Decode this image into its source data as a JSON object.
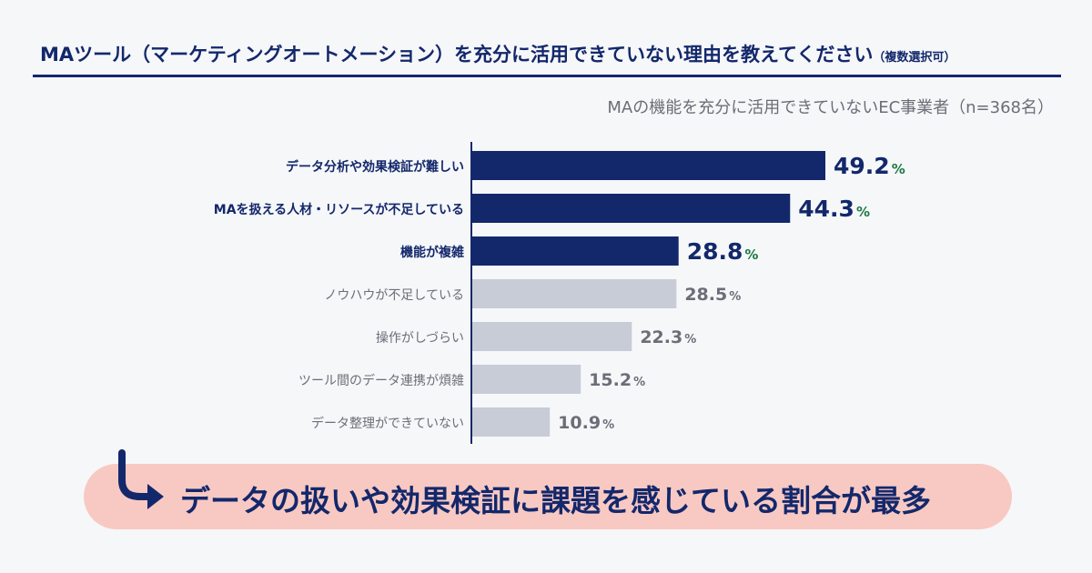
{
  "header": {
    "title": "MAツール（マーケティングオートメーション）を充分に活用できていない理由を教えてください",
    "title_note": "（複数選択可）",
    "subtitle": "MAの機能を充分に活用できていないEC事業者（n=368名）"
  },
  "chart_data": {
    "type": "bar",
    "orientation": "horizontal",
    "categories": [
      "データ分析や効果検証が難しい",
      "MAを扱える人材・リソースが不足している",
      "機能が複雑",
      "ノウハウが不足している",
      "操作がしづらい",
      "ツール間のデータ連携が煩雑",
      "データ整理ができていない"
    ],
    "values": [
      49.2,
      44.3,
      28.8,
      28.5,
      22.3,
      15.2,
      10.9
    ],
    "value_labels": [
      "49.2",
      "44.3",
      "28.8",
      "28.5",
      "22.3",
      "15.2",
      "10.9"
    ],
    "unit": "%",
    "highlighted_count": 3,
    "xlim": [
      0,
      60
    ],
    "colors": {
      "highlight": "#13286b",
      "normal": "#c8ccd7",
      "highlight_text": "#13286b",
      "normal_text": "#6b6e77",
      "percent_highlight": "#1d7a45",
      "axis": "#13286b"
    }
  },
  "callout": {
    "text": "データの扱いや効果検証に課題を感じている割合が最多",
    "background": "#f8c9c3"
  },
  "icons": {
    "callout_arrow": "curved-arrow-icon"
  }
}
